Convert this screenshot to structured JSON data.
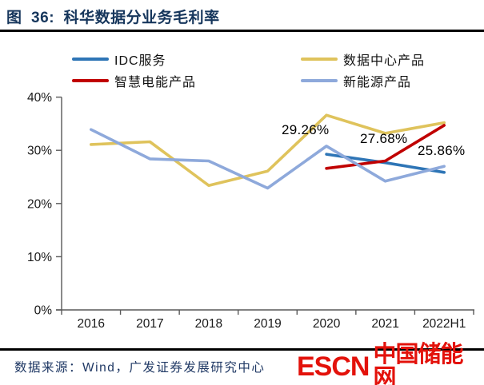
{
  "header": {
    "title": "图  36:  科华数据分业务毛利率"
  },
  "chart_data": {
    "type": "line",
    "title": "科华数据分业务毛利率",
    "categories": [
      "2016",
      "2017",
      "2018",
      "2019",
      "2020",
      "2021",
      "2022H1"
    ],
    "series": [
      {
        "name": "IDC服务",
        "color": "#2E75B6",
        "values": [
          null,
          null,
          null,
          null,
          29.26,
          27.68,
          25.86
        ]
      },
      {
        "name": "数据中心产品",
        "color": "#DFC35C",
        "values": [
          31.1,
          31.6,
          23.4,
          26.1,
          36.6,
          33.2,
          35.2
        ]
      },
      {
        "name": "智慧电能产品",
        "color": "#C00000",
        "values": [
          null,
          null,
          null,
          null,
          26.6,
          28.0,
          34.7
        ]
      },
      {
        "name": "新能源产品",
        "color": "#8EA9DB",
        "values": [
          33.9,
          28.4,
          28.0,
          22.9,
          30.8,
          24.2,
          27.0
        ]
      }
    ],
    "ylim": [
      0,
      40
    ],
    "y_ticks": [
      "0%",
      "10%",
      "20%",
      "30%",
      "40%"
    ],
    "grid": false,
    "legend_position": "top",
    "annotations": [
      {
        "text": "29.26%",
        "series": "IDC服务",
        "category": "2020"
      },
      {
        "text": "27.68%",
        "series": "IDC服务",
        "category": "2021"
      },
      {
        "text": "25.86%",
        "series": "IDC服务",
        "category": "2022H1"
      }
    ]
  },
  "footer": {
    "source": "数据来源：Wind，广发证券发展研究中心",
    "logo_escn": "ESCN",
    "logo_cn": "中国储能网"
  }
}
